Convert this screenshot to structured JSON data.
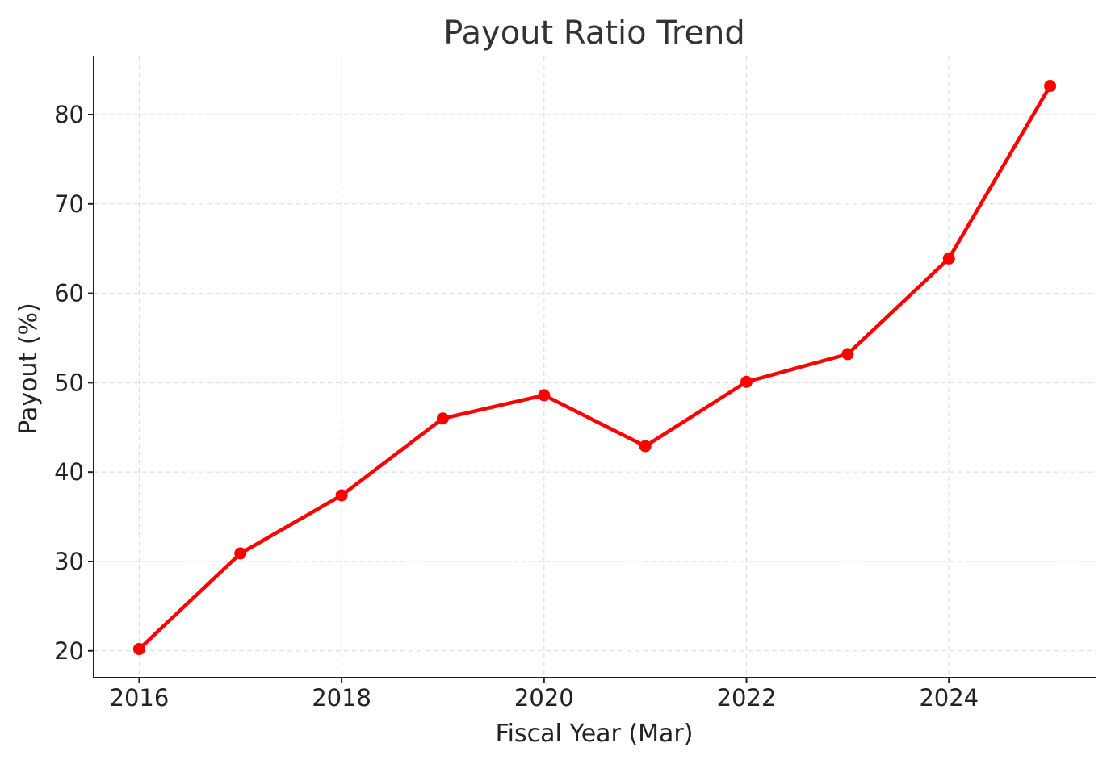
{
  "chart_data": {
    "type": "line",
    "title": "Payout Ratio Trend",
    "xlabel": "Fiscal Year (Mar)",
    "ylabel": "Payout (%)",
    "x": [
      2016,
      2017,
      2018,
      2019,
      2020,
      2021,
      2022,
      2023,
      2024,
      2025
    ],
    "series": [
      {
        "values": [
          20.2,
          30.9,
          37.4,
          46.0,
          48.6,
          42.9,
          50.1,
          53.2,
          63.9,
          83.2
        ],
        "color": "#ff0000",
        "marker": "circle"
      }
    ],
    "xlim": [
      2015.55,
      2025.45
    ],
    "ylim": [
      17.0,
      86.5
    ],
    "xticks": [
      2016,
      2018,
      2020,
      2022,
      2024
    ],
    "yticks": [
      20,
      30,
      40,
      50,
      60,
      70,
      80
    ],
    "grid": true,
    "legend": "none"
  }
}
